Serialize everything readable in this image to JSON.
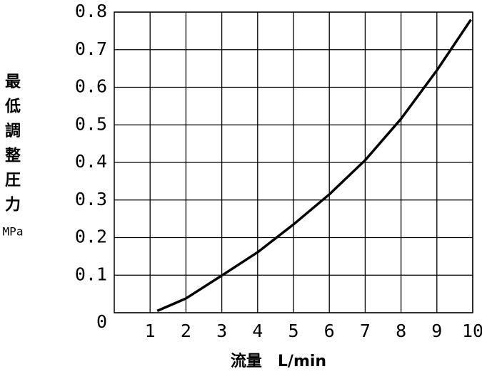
{
  "chart_data": {
    "type": "line",
    "y_label": "最低調整圧力",
    "y_unit": "MPa",
    "x_label": "流量　L/min",
    "x": [
      1.2,
      2,
      3,
      4,
      5,
      6,
      7,
      8,
      9,
      9.95
    ],
    "series": [
      {
        "color": "#000000",
        "values": [
          0.005,
          0.038,
          0.099,
          0.161,
          0.235,
          0.315,
          0.406,
          0.516,
          0.645,
          0.78
        ]
      }
    ],
    "xlim": [
      0,
      10
    ],
    "xticks": [
      1,
      2,
      3,
      4,
      5,
      6,
      7,
      8,
      9,
      10
    ],
    "ylim": [
      0,
      0.8
    ],
    "yticks": [
      0,
      0.1,
      0.2,
      0.3,
      0.4,
      0.5,
      0.6,
      0.7,
      0.8
    ],
    "grid": true
  }
}
